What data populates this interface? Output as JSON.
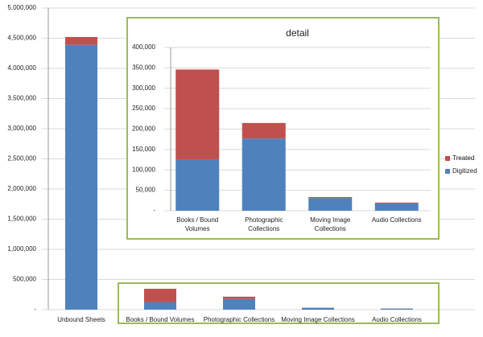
{
  "chart_data": [
    {
      "type": "bar",
      "stacked": true,
      "grid": true,
      "categories": [
        "Unbound Sheets",
        "Books / Bound Volumes",
        "Photographic Collections",
        "Moving Image Collections",
        "Audio Collections"
      ],
      "series": [
        {
          "color": "#4f81bd",
          "values": [
            4390000,
            126000,
            177000,
            31000,
            18000
          ]
        },
        {
          "color": "#c0504d",
          "values": [
            130000,
            220000,
            38000,
            2500,
            2000
          ]
        }
      ],
      "ylim": [
        0,
        5000000
      ],
      "yticks": [
        {
          "value": 0,
          "label": "-"
        },
        {
          "value": 500000,
          "label": "500,000"
        },
        {
          "value": 1000000,
          "label": "1,000,000"
        },
        {
          "value": 1500000,
          "label": "1,500,000"
        },
        {
          "value": 2000000,
          "label": "2,000,000"
        },
        {
          "value": 2500000,
          "label": "2,500,000"
        },
        {
          "value": 3000000,
          "label": "3,000,000"
        },
        {
          "value": 3500000,
          "label": "3,500,000"
        },
        {
          "value": 4000000,
          "label": "4,000,000"
        },
        {
          "value": 4500000,
          "label": "4,500,000"
        },
        {
          "value": 5000000,
          "label": "5,000,000"
        }
      ]
    },
    {
      "type": "bar",
      "stacked": true,
      "grid": true,
      "title": "detail",
      "legend": "right",
      "categories": [
        "Books / Bound Volumes",
        "Photographic Collections",
        "Moving Image Collections",
        "Audio Collections"
      ],
      "series": [
        {
          "name": "Digitized",
          "color": "#4f81bd",
          "values": [
            126000,
            177000,
            31000,
            18000
          ]
        },
        {
          "name": "Treated",
          "color": "#c0504d",
          "values": [
            220000,
            38000,
            2500,
            2000
          ]
        }
      ],
      "ylim": [
        0,
        400000
      ],
      "yticks": [
        {
          "value": 0,
          "label": "-"
        },
        {
          "value": 50000,
          "label": "50,000"
        },
        {
          "value": 100000,
          "label": "100,000"
        },
        {
          "value": 150000,
          "label": "150,000"
        },
        {
          "value": 200000,
          "label": "200,000"
        },
        {
          "value": 250000,
          "label": "250,000"
        },
        {
          "value": 300000,
          "label": "300,000"
        },
        {
          "value": 350000,
          "label": "350,000"
        },
        {
          "value": 400000,
          "label": "400,000"
        }
      ]
    }
  ]
}
